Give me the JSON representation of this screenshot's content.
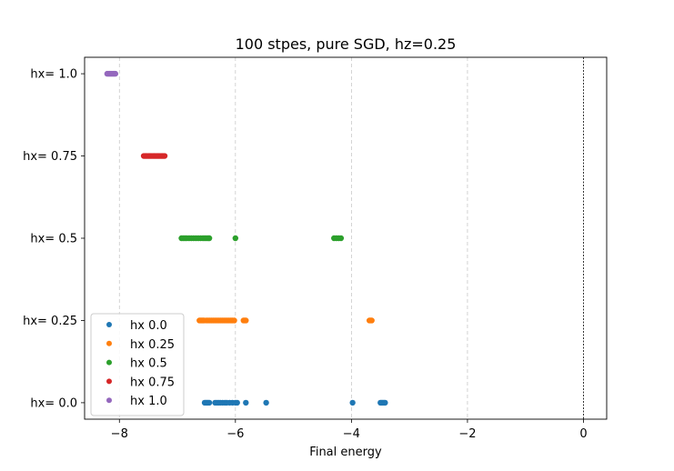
{
  "chart_data": {
    "type": "scatter",
    "title": "100 stpes, pure SGD, hz=0.25",
    "xlabel": "Final energy",
    "ylabel": "",
    "xlim": [
      -8.6,
      0.4
    ],
    "ylim": [
      -0.05,
      1.05
    ],
    "grid": "vertical dashed lines at x ticks",
    "reference_line": {
      "x": 0,
      "style": "dashed black"
    },
    "x_ticks": [
      {
        "value": -8,
        "label": "−8"
      },
      {
        "value": -6,
        "label": "−6"
      },
      {
        "value": -4,
        "label": "−4"
      },
      {
        "value": -2,
        "label": "−2"
      },
      {
        "value": 0,
        "label": "0"
      }
    ],
    "y_ticks": [
      {
        "value": 0.0,
        "label": "hx= 0.0"
      },
      {
        "value": 0.25,
        "label": "hx= 0.25"
      },
      {
        "value": 0.5,
        "label": "hx= 0.5"
      },
      {
        "value": 0.75,
        "label": "hx= 0.75"
      },
      {
        "value": 1.0,
        "label": "hx= 1.0"
      }
    ],
    "legend_position": "lower-left",
    "series": [
      {
        "name": "hx 0.0",
        "color": "#1f77b4",
        "y": 0.0,
        "x": [
          -6.53,
          -6.51,
          -6.49,
          -6.47,
          -6.45,
          -6.35,
          -6.32,
          -6.29,
          -6.26,
          -6.22,
          -6.18,
          -6.15,
          -6.1,
          -6.05,
          -6.0,
          -5.97,
          -5.82,
          -5.47,
          -3.98,
          -3.5,
          -3.48,
          -3.46,
          -3.44,
          -3.42
        ]
      },
      {
        "name": "hx 0.25",
        "color": "#ff7f0e",
        "y": 0.25,
        "x": [
          -6.62,
          -6.6,
          -6.58,
          -6.56,
          -6.54,
          -6.5,
          -6.47,
          -6.44,
          -6.41,
          -6.38,
          -6.35,
          -6.32,
          -6.29,
          -6.26,
          -6.23,
          -6.2,
          -6.17,
          -6.14,
          -6.11,
          -6.08,
          -6.05,
          -6.02,
          -5.86,
          -5.84,
          -5.82,
          -3.69,
          -3.67,
          -3.65
        ]
      },
      {
        "name": "hx 0.5",
        "color": "#2ca02c",
        "y": 0.5,
        "x": [
          -6.93,
          -6.9,
          -6.87,
          -6.84,
          -6.8,
          -6.76,
          -6.72,
          -6.68,
          -6.64,
          -6.6,
          -6.56,
          -6.53,
          -6.5,
          -6.47,
          -6.45,
          -6.0,
          -4.3,
          -4.26,
          -4.22,
          -4.18
        ]
      },
      {
        "name": "hx 0.75",
        "color": "#d62728",
        "y": 0.75,
        "x": [
          -7.58,
          -7.56,
          -7.54,
          -7.52,
          -7.5,
          -7.48,
          -7.46,
          -7.44,
          -7.42,
          -7.4,
          -7.38,
          -7.36,
          -7.34,
          -7.32,
          -7.3,
          -7.28,
          -7.26,
          -7.24,
          -7.22
        ]
      },
      {
        "name": "hx 1.0",
        "color": "#9467bd",
        "y": 1.0,
        "x": [
          -8.21,
          -8.19,
          -8.17,
          -8.15,
          -8.13,
          -8.11,
          -8.09,
          -8.07
        ]
      }
    ]
  }
}
